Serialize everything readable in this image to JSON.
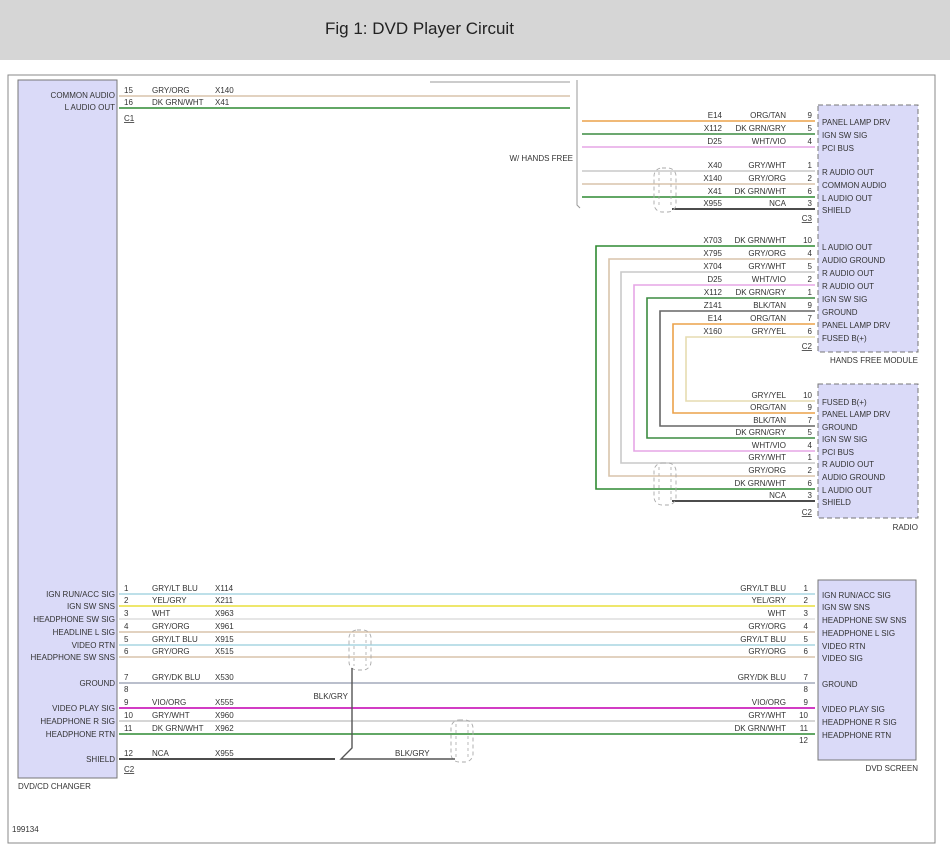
{
  "header": {
    "title": "Fig 1: DVD Player Circuit"
  },
  "diagram_id": "199134",
  "wire_colors": {
    "GRY/ORG": "#d9c4ab",
    "DK GRN/WHT": "#2f8a32",
    "ORG/TAN": "#eba24a",
    "DK GRN/GRY": "#3c8c40",
    "WHT/VIO": "#e6a6e6",
    "GRY/WHT": "#c9c9c9",
    "NCA": "#111111",
    "GRY/YEL": "#e6dcb0",
    "BLK/TAN": "#666666",
    "GRY/LT BLU": "#a8d6e2",
    "YEL/GRY": "#e8df3c",
    "WHT": "#dddddd",
    "GRY/DK BLU": "#a3aabb",
    "VIO/ORG": "#d23cc4",
    "BLK/GRY": "#555555"
  },
  "dvd_changer": {
    "name": "DVD/CD CHANGER",
    "c1": {
      "label": "C1",
      "pins": [
        {
          "pin": "15",
          "func": "COMMON AUDIO",
          "color": "GRY/ORG",
          "circuit": "X140"
        },
        {
          "pin": "16",
          "func": "L AUDIO OUT",
          "color": "DK GRN/WHT",
          "circuit": "X41"
        }
      ]
    },
    "c2": {
      "label": "C2",
      "pins": [
        {
          "pin": "1",
          "func": "IGN RUN/ACC SIG",
          "color": "GRY/LT BLU",
          "circuit": "X114"
        },
        {
          "pin": "2",
          "func": "IGN SW SNS",
          "color": "YEL/GRY",
          "circuit": "X211"
        },
        {
          "pin": "3",
          "func": "HEADPHONE SW SIG",
          "color": "WHT",
          "circuit": "X963"
        },
        {
          "pin": "4",
          "func": "HEADLINE L SIG",
          "color": "GRY/ORG",
          "circuit": "X961"
        },
        {
          "pin": "5",
          "func": "VIDEO RTN",
          "color": "GRY/LT BLU",
          "circuit": "X915"
        },
        {
          "pin": "6",
          "func": "HEADPHONE SW SNS",
          "color": "GRY/ORG",
          "circuit": "X515"
        },
        {
          "pin": "7",
          "func": "GROUND",
          "color": "GRY/DK BLU",
          "circuit": "X530"
        },
        {
          "pin": "8",
          "func": "",
          "color": "",
          "circuit": ""
        },
        {
          "pin": "9",
          "func": "VIDEO PLAY SIG",
          "color": "VIO/ORG",
          "circuit": "X555"
        },
        {
          "pin": "10",
          "func": "HEADPHONE R SIG",
          "color": "GRY/WHT",
          "circuit": "X960"
        },
        {
          "pin": "11",
          "func": "HEADPHONE RTN",
          "color": "DK GRN/WHT",
          "circuit": "X962"
        },
        {
          "pin": "12",
          "func": "SHIELD",
          "color": "NCA",
          "circuit": "X955"
        }
      ]
    }
  },
  "hands_free_module": {
    "name": "HANDS FREE MODULE",
    "option_note": "W/ HANDS FREE",
    "c3": {
      "label": "C3",
      "pins": [
        {
          "pin": "9",
          "func": "PANEL LAMP DRV",
          "color": "ORG/TAN",
          "circuit": "E14"
        },
        {
          "pin": "5",
          "func": "IGN SW SIG",
          "color": "DK GRN/GRY",
          "circuit": "X112"
        },
        {
          "pin": "4",
          "func": "PCI BUS",
          "color": "WHT/VIO",
          "circuit": "D25"
        },
        {
          "pin": "1",
          "func": "R AUDIO OUT",
          "color": "GRY/WHT",
          "circuit": "X40"
        },
        {
          "pin": "2",
          "func": "COMMON AUDIO",
          "color": "GRY/ORG",
          "circuit": "X140"
        },
        {
          "pin": "6",
          "func": "L AUDIO OUT",
          "color": "DK GRN/WHT",
          "circuit": "X41"
        },
        {
          "pin": "3",
          "func": "SHIELD",
          "color": "NCA",
          "circuit": "X955"
        }
      ]
    },
    "c2": {
      "label": "C2",
      "pins": [
        {
          "pin": "10",
          "func": "L AUDIO OUT",
          "color": "DK GRN/WHT",
          "circuit": "X703"
        },
        {
          "pin": "4",
          "func": "AUDIO GROUND",
          "color": "GRY/ORG",
          "circuit": "X795"
        },
        {
          "pin": "5",
          "func": "R AUDIO OUT",
          "color": "GRY/WHT",
          "circuit": "X704"
        },
        {
          "pin": "2",
          "func": "R AUDIO OUT",
          "color": "WHT/VIO",
          "circuit": "D25"
        },
        {
          "pin": "1",
          "func": "IGN SW SIG",
          "color": "DK GRN/GRY",
          "circuit": "X112"
        },
        {
          "pin": "9",
          "func": "GROUND",
          "color": "BLK/TAN",
          "circuit": "Z141"
        },
        {
          "pin": "7",
          "func": "PANEL LAMP DRV",
          "color": "ORG/TAN",
          "circuit": "E14"
        },
        {
          "pin": "6",
          "func": "FUSED B(+)",
          "color": "GRY/YEL",
          "circuit": "X160"
        }
      ]
    }
  },
  "radio": {
    "name": "RADIO",
    "c2": {
      "label": "C2",
      "pins": [
        {
          "pin": "10",
          "func": "FUSED B(+)",
          "color": "GRY/YEL"
        },
        {
          "pin": "9",
          "func": "PANEL LAMP DRV",
          "color": "ORG/TAN"
        },
        {
          "pin": "7",
          "func": "GROUND",
          "color": "BLK/TAN"
        },
        {
          "pin": "5",
          "func": "IGN SW SIG",
          "color": "DK GRN/GRY"
        },
        {
          "pin": "4",
          "func": "PCI BUS",
          "color": "WHT/VIO"
        },
        {
          "pin": "1",
          "func": "R AUDIO OUT",
          "color": "GRY/WHT"
        },
        {
          "pin": "2",
          "func": "AUDIO GROUND",
          "color": "GRY/ORG"
        },
        {
          "pin": "6",
          "func": "L AUDIO OUT",
          "color": "DK GRN/WHT"
        },
        {
          "pin": "3",
          "func": "SHIELD",
          "color": "NCA"
        }
      ]
    }
  },
  "dvd_screen": {
    "name": "DVD SCREEN",
    "pins": [
      {
        "pin": "1",
        "func": "IGN RUN/ACC SIG",
        "color": "GRY/LT BLU"
      },
      {
        "pin": "2",
        "func": "IGN SW SNS",
        "color": "YEL/GRY"
      },
      {
        "pin": "3",
        "func": "HEADPHONE SW SNS",
        "color": "WHT"
      },
      {
        "pin": "4",
        "func": "HEADPHONE L SIG",
        "color": "GRY/ORG"
      },
      {
        "pin": "5",
        "func": "VIDEO RTN",
        "color": "GRY/LT BLU"
      },
      {
        "pin": "6",
        "func": "VIDEO SIG",
        "color": "GRY/ORG"
      },
      {
        "pin": "7",
        "func": "GROUND",
        "color": "GRY/DK BLU"
      },
      {
        "pin": "8",
        "func": "",
        "color": ""
      },
      {
        "pin": "9",
        "func": "VIDEO PLAY SIG",
        "color": "VIO/ORG"
      },
      {
        "pin": "10",
        "func": "HEADPHONE R SIG",
        "color": "GRY/WHT"
      },
      {
        "pin": "11",
        "func": "HEADPHONE RTN",
        "color": "DK GRN/WHT"
      },
      {
        "pin": "12",
        "func": "",
        "color": ""
      }
    ]
  },
  "shield_drain": {
    "color": "BLK/GRY",
    "label_vertical": "BLK/GRY",
    "label_horizontal": "BLK/GRY"
  }
}
